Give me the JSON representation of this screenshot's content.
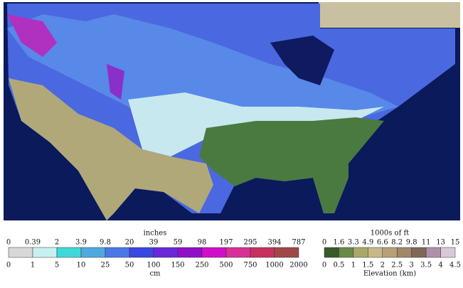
{
  "snow_legend": {
    "title": "inches",
    "top_labels": [
      "0",
      "0.39",
      "2",
      "3.9",
      "9.8",
      "20",
      "39",
      "59",
      "98",
      "197",
      "295",
      "394",
      "787"
    ],
    "bottom_labels": [
      "0",
      "1",
      "5",
      "10",
      "25",
      "50",
      "100",
      "150",
      "250",
      "500",
      "750",
      "1000",
      "2000"
    ],
    "unit": "cm",
    "colors": [
      "#d8d8d8",
      "#c8f0f0",
      "#40d8d8",
      "#50a8e0",
      "#4a78e8",
      "#3848e0",
      "#6a28d8",
      "#9010c8",
      "#d010c8",
      "#d83098",
      "#c83060",
      "#a04848"
    ]
  },
  "elevation_legend": {
    "title": "1000s of ft",
    "top_labels": [
      "0",
      "1.6",
      "3.3",
      "4.9",
      "6.6",
      "8.2",
      "9.8",
      "11",
      "13",
      "15"
    ],
    "bottom_labels": [
      "0",
      "0.5",
      "1",
      "1.5",
      "2",
      "2.5",
      "3",
      "3.5",
      "4",
      "4.5"
    ],
    "unit": "Elevation (km)",
    "colors": [
      "#3a5a2a",
      "#6a8a48",
      "#a8a868",
      "#c8b888",
      "#b8a078",
      "#a08868",
      "#806858",
      "#b090a8",
      "#d8c8d8"
    ]
  }
}
